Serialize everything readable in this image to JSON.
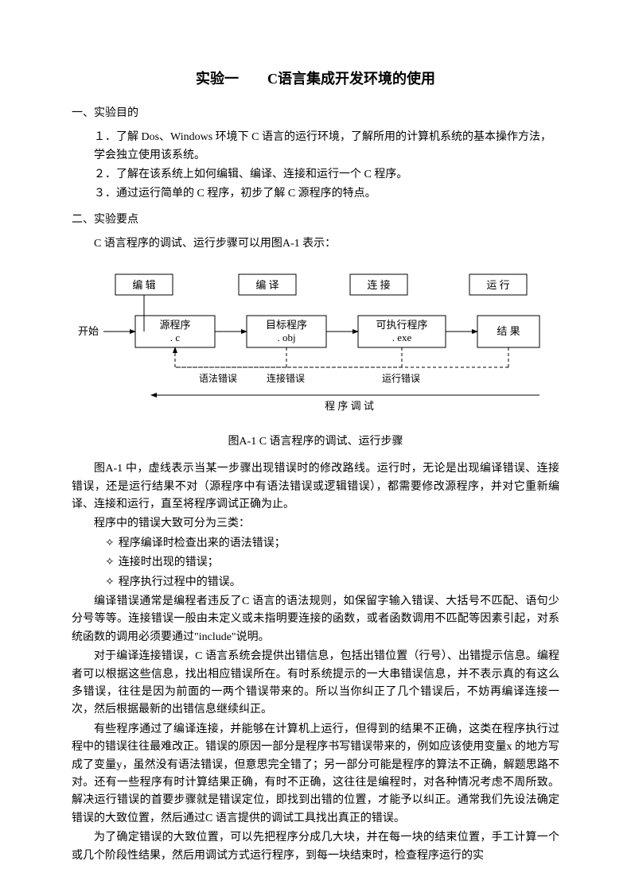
{
  "title": "实验一　　C语言集成开发环境的使用",
  "section1": {
    "heading": "一、实验目的",
    "items": [
      "１．了解 Dos、Windows 环境下 C 语言的运行环境，了解所用的计算机系统的基本操作方法，学会独立使用该系统。",
      "２．了解在该系统上如何编辑、编译、连接和运行一个 C 程序。",
      "３．通过运行简单的 C 程序，初步了解 C 源程序的特点。"
    ]
  },
  "section2": {
    "heading": "二、实验要点",
    "intro": "C 语言程序的调试、运行步骤可以用图A-1 表示：",
    "caption": "图A-1 C 语言程序的调试、运行步骤",
    "p1": "图A-1 中，虚线表示当某一步骤出现错误时的修改路线。运行时，无论是出现编译错误、连接错误，还是运行结果不对（源程序中有语法错误或逻辑错误），都需要修改源程序，并对它重新编译、连接和运行，直至将程序调试正确为止。",
    "p2": "程序中的错误大致可分为三类：",
    "bullets": [
      "程序编译时检查出来的语法错误；",
      "连接时出现的错误；",
      "程序执行过程中的错误。"
    ],
    "p3": "编译错误通常是编程者违反了C 语言的语法规则，如保留字输入错误、大括号不匹配、语句少分号等等。连接错误一般由未定义或未指明要连接的函数，或者函数调用不匹配等因素引起，对系统函数的调用必须要通过\"include\"说明。",
    "p4": "对于编译连接错误，C 语言系统会提供出错信息，包括出错位置（行号）、出错提示信息。编程者可以根据这些信息，找出相应错误所在。有时系统提示的一大串错误信息，并不表示真的有这么多错误，往往是因为前面的一两个错误带来的。所以当你纠正了几个错误后，不妨再编译连接一次，然后根据最新的出错信息继续纠正。",
    "p5": "有些程序通过了编译连接，并能够在计算机上运行，但得到的结果不正确，这类在程序执行过程中的错误往往最难改正。错误的原因一部分是程序书写错误带来的，例如应该使用变量x 的地方写成了变量y，虽然没有语法错误，但意思完全错了；另一部分可能是程序的算法不正确，解题思路不对。还有一些程序有时计算结果正确，有时不正确，这往往是编程时，对各种情况考虑不周所致。解决运行错误的首要步骤就是错误定位，即找到出错的位置，才能予以纠正。通常我们先设法确定错误的大致位置，然后通过C 语言提供的调试工具找出真正的错误。",
    "p6": "为了确定错误的大致位置，可以先把程序分成几大块，并在每一块的结束位置，手工计算一个或几个阶段性结果，然后用调试方式运行程序，到每一块结束时，检查程序运行的实"
  },
  "diagram": {
    "start_label": "开始",
    "top_labels": [
      "编 辑",
      "编 译",
      "连 接",
      "运 行"
    ],
    "boxes": [
      {
        "line1": "源程序",
        "line2": ". c"
      },
      {
        "line1": "目标程序",
        "line2": ". obj"
      },
      {
        "line1": "可执行程序",
        "line2": ". exe"
      },
      {
        "line1": "结 果",
        "line2": ""
      }
    ],
    "error_labels": [
      "语法错误",
      "连接错误",
      "运行错误"
    ],
    "debug_label": "程 序 调 试",
    "colors": {
      "line": "#000000",
      "text": "#000000",
      "bg": "#ffffff"
    },
    "stroke_width": 1,
    "dash": "4,3",
    "font_size_label": 13,
    "font_size_box": 13,
    "font_size_small": 12
  }
}
